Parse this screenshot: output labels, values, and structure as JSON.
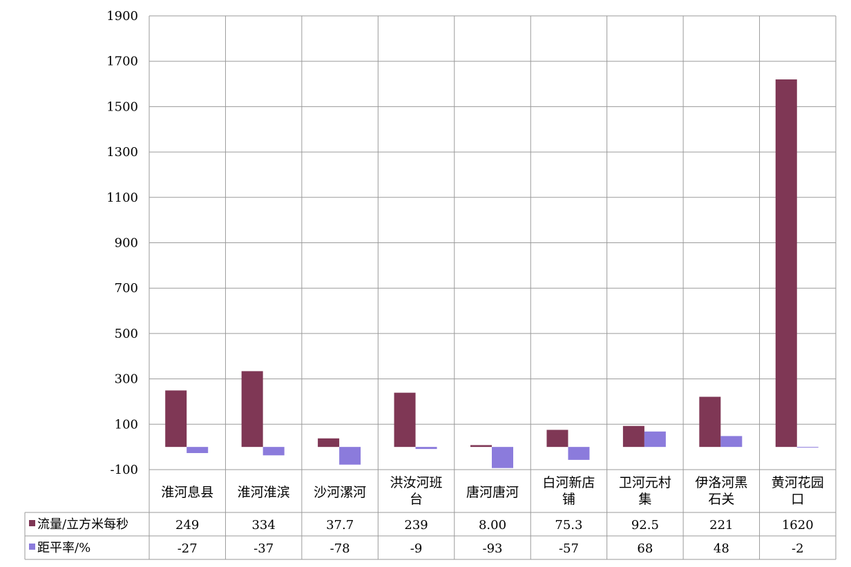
{
  "chart_data": {
    "type": "bar",
    "categories": [
      [
        "淮河息县"
      ],
      [
        "淮河淮滨"
      ],
      [
        "沙河漯河"
      ],
      [
        "洪汝河班",
        "台"
      ],
      [
        "唐河唐河"
      ],
      [
        "白河新店",
        "铺"
      ],
      [
        "卫河元村",
        "集"
      ],
      [
        "伊洛河黑",
        "石关"
      ],
      [
        "黄河花园",
        "口"
      ]
    ],
    "series": [
      {
        "name": "流量/立方米每秒",
        "color": "#7f3755",
        "values": [
          249,
          334,
          37.7,
          239,
          8.0,
          75.3,
          92.5,
          221,
          1620
        ],
        "labels": [
          "249",
          "334",
          "37.7",
          "239",
          "8.00",
          "75.3",
          "92.5",
          "221",
          "1620"
        ]
      },
      {
        "name": "距平率/%",
        "color": "#8b7bdc",
        "values": [
          -27,
          -37,
          -78,
          -9,
          -93,
          -57,
          68,
          48,
          -2
        ],
        "labels": [
          "-27",
          "-37",
          "-78",
          "-9",
          "-93",
          "-57",
          "68",
          "48",
          "-2"
        ]
      }
    ],
    "ylim": [
      -100,
      1900
    ],
    "yticks": [
      "1900",
      "1700",
      "1500",
      "1300",
      "1100",
      "900",
      "700",
      "500",
      "300",
      "100",
      "-100"
    ],
    "ytick_values": [
      1900,
      1700,
      1500,
      1300,
      1100,
      900,
      700,
      500,
      300,
      100,
      -100
    ],
    "grid": true,
    "legend": "data-table"
  }
}
